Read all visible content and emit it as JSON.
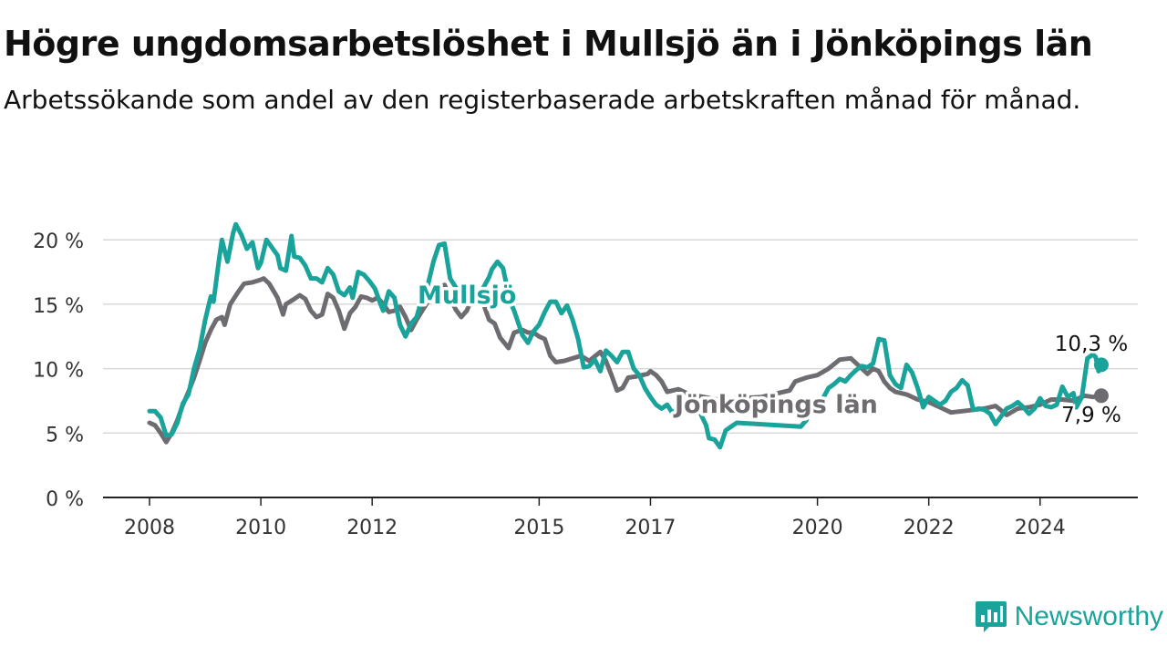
{
  "header": {
    "title": "Högre ungdomsarbetslöshet i Mullsjö än i Jönköpings län",
    "subtitle": "Arbetssökande som andel av den registerbaserade arbetskraften månad för månad."
  },
  "brand": {
    "name": "Newsworthy",
    "icon": "newsworthy-chart-icon",
    "color": "#1aa39a"
  },
  "chart_data": {
    "type": "line",
    "y_tick_labels": [
      "0 %",
      "5 %",
      "10 %",
      "15 %",
      "20 %"
    ],
    "y_ticks": [
      0,
      5,
      10,
      15,
      20
    ],
    "ylim": [
      0,
      22
    ],
    "x_tick_labels": [
      "2008",
      "2010",
      "2012",
      "2015",
      "2017",
      "2020",
      "2022",
      "2024"
    ],
    "x_ticks": [
      2008,
      2010,
      2012,
      2015,
      2017,
      2020,
      2022,
      2024
    ],
    "xlim": [
      2008,
      2025.3
    ],
    "grid": true,
    "series": [
      {
        "name": "Jönköpings län",
        "color": "#6e6c70",
        "end_label": "7,9 %",
        "points": [
          [
            2008.0,
            5.8
          ],
          [
            2008.1,
            5.6
          ],
          [
            2008.2,
            5.0
          ],
          [
            2008.3,
            4.3
          ],
          [
            2008.4,
            5.0
          ],
          [
            2008.5,
            6.0
          ],
          [
            2008.6,
            7.2
          ],
          [
            2008.7,
            8.2
          ],
          [
            2008.8,
            9.3
          ],
          [
            2008.9,
            10.6
          ],
          [
            2009.0,
            12.0
          ],
          [
            2009.1,
            13.0
          ],
          [
            2009.2,
            13.8
          ],
          [
            2009.3,
            14.0
          ],
          [
            2009.35,
            13.4
          ],
          [
            2009.45,
            15.0
          ],
          [
            2009.6,
            16.0
          ],
          [
            2009.7,
            16.6
          ],
          [
            2009.85,
            16.7
          ],
          [
            2010.0,
            16.9
          ],
          [
            2010.05,
            17.0
          ],
          [
            2010.15,
            16.6
          ],
          [
            2010.3,
            15.5
          ],
          [
            2010.4,
            14.2
          ],
          [
            2010.45,
            15.0
          ],
          [
            2010.6,
            15.4
          ],
          [
            2010.7,
            15.7
          ],
          [
            2010.8,
            15.4
          ],
          [
            2010.9,
            14.5
          ],
          [
            2011.0,
            14.0
          ],
          [
            2011.1,
            14.2
          ],
          [
            2011.2,
            15.8
          ],
          [
            2011.3,
            15.5
          ],
          [
            2011.4,
            14.5
          ],
          [
            2011.5,
            13.1
          ],
          [
            2011.6,
            14.3
          ],
          [
            2011.7,
            14.8
          ],
          [
            2011.8,
            15.6
          ],
          [
            2011.9,
            15.5
          ],
          [
            2012.0,
            15.3
          ],
          [
            2012.1,
            15.5
          ],
          [
            2012.2,
            15.0
          ],
          [
            2012.3,
            14.4
          ],
          [
            2012.4,
            14.5
          ],
          [
            2012.5,
            14.8
          ],
          [
            2012.6,
            14.0
          ],
          [
            2012.7,
            13.0
          ],
          [
            2012.8,
            13.8
          ],
          [
            2012.9,
            14.5
          ],
          [
            2013.0,
            15.2
          ],
          [
            2013.1,
            15.7
          ],
          [
            2013.2,
            16.2
          ],
          [
            2013.3,
            16.5
          ],
          [
            2013.4,
            15.5
          ],
          [
            2013.5,
            14.6
          ],
          [
            2013.6,
            14.0
          ],
          [
            2013.7,
            14.5
          ],
          [
            2013.8,
            15.5
          ],
          [
            2014.0,
            15.0
          ],
          [
            2014.1,
            13.8
          ],
          [
            2014.2,
            13.5
          ],
          [
            2014.3,
            12.4
          ],
          [
            2014.45,
            11.6
          ],
          [
            2014.55,
            12.8
          ],
          [
            2014.7,
            13.0
          ],
          [
            2014.8,
            12.8
          ],
          [
            2014.9,
            12.8
          ],
          [
            2015.0,
            12.5
          ],
          [
            2015.1,
            12.3
          ],
          [
            2015.2,
            11.0
          ],
          [
            2015.3,
            10.5
          ],
          [
            2015.45,
            10.6
          ],
          [
            2015.6,
            10.8
          ],
          [
            2015.75,
            11.0
          ],
          [
            2015.9,
            10.6
          ],
          [
            2016.1,
            11.3
          ],
          [
            2016.2,
            10.6
          ],
          [
            2016.3,
            9.5
          ],
          [
            2016.4,
            8.3
          ],
          [
            2016.5,
            8.5
          ],
          [
            2016.6,
            9.3
          ],
          [
            2016.75,
            9.4
          ],
          [
            2016.85,
            9.5
          ],
          [
            2016.95,
            9.6
          ],
          [
            2017.0,
            9.8
          ],
          [
            2017.1,
            9.5
          ],
          [
            2017.2,
            9.0
          ],
          [
            2017.3,
            8.2
          ],
          [
            2017.5,
            8.4
          ],
          [
            2017.7,
            8.0
          ],
          [
            2018.2,
            7.6
          ],
          [
            2019.0,
            7.8
          ],
          [
            2019.5,
            8.3
          ],
          [
            2019.6,
            9.0
          ],
          [
            2019.8,
            9.3
          ],
          [
            2020.0,
            9.5
          ],
          [
            2020.2,
            10.0
          ],
          [
            2020.4,
            10.7
          ],
          [
            2020.6,
            10.8
          ],
          [
            2020.8,
            10.0
          ],
          [
            2020.9,
            9.6
          ],
          [
            2021.0,
            10.0
          ],
          [
            2021.1,
            9.8
          ],
          [
            2021.2,
            9.0
          ],
          [
            2021.3,
            8.5
          ],
          [
            2021.4,
            8.2
          ],
          [
            2021.6,
            8.0
          ],
          [
            2021.8,
            7.6
          ],
          [
            2022.0,
            7.4
          ],
          [
            2022.2,
            7.0
          ],
          [
            2022.4,
            6.6
          ],
          [
            2022.6,
            6.7
          ],
          [
            2022.8,
            6.8
          ],
          [
            2023.0,
            6.9
          ],
          [
            2023.2,
            7.1
          ],
          [
            2023.4,
            6.4
          ],
          [
            2023.6,
            6.9
          ],
          [
            2023.8,
            7.0
          ],
          [
            2024.0,
            7.2
          ],
          [
            2024.2,
            7.6
          ],
          [
            2024.4,
            7.6
          ],
          [
            2024.6,
            7.5
          ],
          [
            2024.8,
            7.9
          ],
          [
            2024.95,
            7.8
          ],
          [
            2025.1,
            7.9
          ]
        ]
      },
      {
        "name": "Mullsjö",
        "color": "#1aa39a",
        "end_label": "10,3 %",
        "points": [
          [
            2008.0,
            6.7
          ],
          [
            2008.1,
            6.7
          ],
          [
            2008.2,
            6.2
          ],
          [
            2008.3,
            4.8
          ],
          [
            2008.4,
            4.9
          ],
          [
            2008.5,
            5.8
          ],
          [
            2008.6,
            7.3
          ],
          [
            2008.7,
            8.0
          ],
          [
            2008.8,
            10.0
          ],
          [
            2008.9,
            11.5
          ],
          [
            2009.0,
            13.8
          ],
          [
            2009.1,
            15.6
          ],
          [
            2009.15,
            15.2
          ],
          [
            2009.25,
            18.5
          ],
          [
            2009.3,
            20.0
          ],
          [
            2009.4,
            18.3
          ],
          [
            2009.5,
            20.5
          ],
          [
            2009.55,
            21.2
          ],
          [
            2009.65,
            20.4
          ],
          [
            2009.75,
            19.3
          ],
          [
            2009.85,
            19.8
          ],
          [
            2009.95,
            17.8
          ],
          [
            2010.0,
            18.2
          ],
          [
            2010.1,
            20.0
          ],
          [
            2010.2,
            19.4
          ],
          [
            2010.3,
            18.8
          ],
          [
            2010.35,
            17.8
          ],
          [
            2010.45,
            17.6
          ],
          [
            2010.55,
            20.3
          ],
          [
            2010.6,
            18.7
          ],
          [
            2010.7,
            18.6
          ],
          [
            2010.8,
            18.0
          ],
          [
            2010.9,
            17.0
          ],
          [
            2011.0,
            17.0
          ],
          [
            2011.1,
            16.7
          ],
          [
            2011.2,
            17.8
          ],
          [
            2011.3,
            17.3
          ],
          [
            2011.4,
            16.0
          ],
          [
            2011.5,
            15.7
          ],
          [
            2011.6,
            16.3
          ],
          [
            2011.65,
            15.5
          ],
          [
            2011.75,
            17.5
          ],
          [
            2011.85,
            17.3
          ],
          [
            2011.95,
            16.8
          ],
          [
            2012.05,
            16.2
          ],
          [
            2012.15,
            15.0
          ],
          [
            2012.2,
            14.5
          ],
          [
            2012.3,
            16.0
          ],
          [
            2012.4,
            15.5
          ],
          [
            2012.5,
            13.4
          ],
          [
            2012.6,
            12.5
          ],
          [
            2012.7,
            13.5
          ],
          [
            2012.8,
            14.0
          ],
          [
            2012.9,
            15.5
          ],
          [
            2013.0,
            16.5
          ],
          [
            2013.1,
            18.3
          ],
          [
            2013.2,
            19.6
          ],
          [
            2013.3,
            19.7
          ],
          [
            2013.4,
            17.0
          ],
          [
            2013.55,
            16.0
          ],
          [
            2013.65,
            15.0
          ],
          [
            2013.75,
            15.5
          ],
          [
            2013.9,
            15.8
          ],
          [
            2014.0,
            16.3
          ],
          [
            2014.1,
            17.1
          ],
          [
            2014.15,
            17.7
          ],
          [
            2014.25,
            18.3
          ],
          [
            2014.35,
            17.8
          ],
          [
            2014.4,
            16.8
          ],
          [
            2014.5,
            15.0
          ],
          [
            2014.55,
            14.5
          ],
          [
            2014.7,
            12.6
          ],
          [
            2014.8,
            12.0
          ],
          [
            2014.9,
            12.9
          ],
          [
            2015.0,
            13.4
          ],
          [
            2015.1,
            14.4
          ],
          [
            2015.2,
            15.2
          ],
          [
            2015.3,
            15.2
          ],
          [
            2015.4,
            14.3
          ],
          [
            2015.5,
            14.9
          ],
          [
            2015.6,
            13.8
          ],
          [
            2015.7,
            12.3
          ],
          [
            2015.8,
            10.1
          ],
          [
            2015.9,
            10.2
          ],
          [
            2016.0,
            10.7
          ],
          [
            2016.1,
            9.8
          ],
          [
            2016.2,
            11.4
          ],
          [
            2016.3,
            11.0
          ],
          [
            2016.4,
            10.5
          ],
          [
            2016.5,
            11.3
          ],
          [
            2016.6,
            11.3
          ],
          [
            2016.7,
            10.0
          ],
          [
            2016.8,
            9.5
          ],
          [
            2016.9,
            8.5
          ],
          [
            2017.0,
            7.8
          ],
          [
            2017.1,
            7.2
          ],
          [
            2017.2,
            6.9
          ],
          [
            2017.3,
            7.2
          ],
          [
            2017.4,
            6.5
          ],
          [
            2017.5,
            7.1
          ],
          [
            2017.6,
            7.0
          ],
          [
            2017.7,
            7.4
          ],
          [
            2017.8,
            7.0
          ],
          [
            2017.9,
            6.5
          ],
          [
            2018.0,
            5.6
          ],
          [
            2018.05,
            4.6
          ],
          [
            2018.15,
            4.5
          ],
          [
            2018.25,
            3.9
          ],
          [
            2018.35,
            5.2
          ],
          [
            2018.45,
            5.5
          ],
          [
            2018.55,
            5.8
          ],
          [
            2019.7,
            5.5
          ],
          [
            2019.8,
            6.0
          ],
          [
            2019.9,
            7.0
          ],
          [
            2020.0,
            7.0
          ],
          [
            2020.1,
            7.7
          ],
          [
            2020.2,
            8.5
          ],
          [
            2020.3,
            8.8
          ],
          [
            2020.4,
            9.2
          ],
          [
            2020.5,
            9.0
          ],
          [
            2020.6,
            9.5
          ],
          [
            2020.7,
            9.9
          ],
          [
            2020.8,
            10.2
          ],
          [
            2020.9,
            10.1
          ],
          [
            2021.0,
            10.4
          ],
          [
            2021.1,
            12.3
          ],
          [
            2021.2,
            12.2
          ],
          [
            2021.3,
            9.5
          ],
          [
            2021.4,
            8.8
          ],
          [
            2021.5,
            8.5
          ],
          [
            2021.6,
            10.3
          ],
          [
            2021.7,
            9.7
          ],
          [
            2021.8,
            8.5
          ],
          [
            2021.9,
            7.0
          ],
          [
            2022.0,
            7.8
          ],
          [
            2022.1,
            7.5
          ],
          [
            2022.2,
            7.2
          ],
          [
            2022.3,
            7.5
          ],
          [
            2022.4,
            8.2
          ],
          [
            2022.5,
            8.5
          ],
          [
            2022.6,
            9.1
          ],
          [
            2022.7,
            8.7
          ],
          [
            2022.8,
            6.8
          ],
          [
            2022.9,
            6.9
          ],
          [
            2023.0,
            6.8
          ],
          [
            2023.1,
            6.5
          ],
          [
            2023.2,
            5.7
          ],
          [
            2023.3,
            6.3
          ],
          [
            2023.4,
            6.9
          ],
          [
            2023.5,
            7.1
          ],
          [
            2023.6,
            7.4
          ],
          [
            2023.7,
            7.0
          ],
          [
            2023.8,
            6.5
          ],
          [
            2023.9,
            6.9
          ],
          [
            2024.0,
            7.7
          ],
          [
            2024.1,
            7.1
          ],
          [
            2024.2,
            7.0
          ],
          [
            2024.3,
            7.2
          ],
          [
            2024.4,
            8.6
          ],
          [
            2024.5,
            7.8
          ],
          [
            2024.6,
            8.1
          ],
          [
            2024.65,
            7.0
          ],
          [
            2024.75,
            7.8
          ],
          [
            2024.85,
            10.8
          ],
          [
            2024.95,
            11.1
          ],
          [
            2025.0,
            10.9
          ],
          [
            2025.05,
            9.8
          ],
          [
            2025.1,
            10.3
          ]
        ]
      }
    ]
  }
}
